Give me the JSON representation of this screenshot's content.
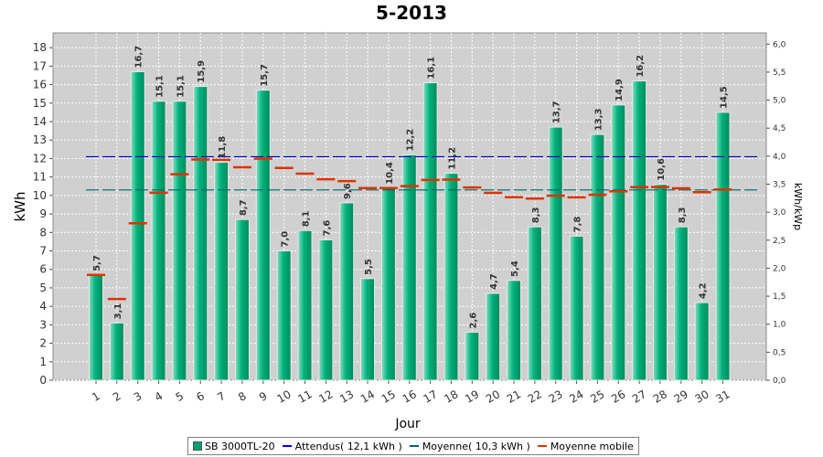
{
  "chart_data": {
    "type": "bar",
    "title": "5-2013",
    "xlabel": "Jour",
    "ylabel": "kWh",
    "y2label": "kWh/kWp",
    "ylim": [
      0,
      18.8
    ],
    "y2lim": [
      0,
      6.2
    ],
    "y_ticks": [
      0,
      1,
      2,
      3,
      4,
      5,
      6,
      7,
      8,
      9,
      10,
      11,
      12,
      13,
      14,
      15,
      16,
      17,
      18
    ],
    "y2_ticks": [
      "0,0",
      "0,5",
      "1,0",
      "1,5",
      "2,0",
      "2,5",
      "3,0",
      "3,5",
      "4,0",
      "4,5",
      "5,0",
      "5,5",
      "6,0"
    ],
    "grid": true,
    "legend_position": "bottom",
    "categories": [
      "1",
      "2",
      "3",
      "4",
      "5",
      "6",
      "7",
      "8",
      "9",
      "10",
      "11",
      "12",
      "13",
      "14",
      "15",
      "16",
      "17",
      "18",
      "19",
      "20",
      "21",
      "22",
      "23",
      "24",
      "25",
      "26",
      "27",
      "28",
      "29",
      "30",
      "31"
    ],
    "series": [
      {
        "name": "SB 3000TL-20",
        "kind": "bar",
        "color": "#00b07a",
        "values": [
          5.7,
          3.1,
          16.7,
          15.1,
          15.1,
          15.9,
          11.8,
          8.7,
          15.7,
          7.0,
          8.1,
          7.6,
          9.6,
          5.5,
          10.4,
          12.2,
          16.1,
          11.2,
          2.6,
          4.7,
          5.4,
          8.3,
          13.7,
          7.8,
          13.3,
          14.9,
          16.2,
          10.6,
          8.3,
          4.2,
          14.5
        ],
        "labels": [
          "5,7",
          "3,1",
          "16,7",
          "15,1",
          "15,1",
          "15,9",
          "11,8",
          "8,7",
          "15,7",
          "7,0",
          "8,1",
          "7,6",
          "9,6",
          "5,5",
          "10,4",
          "12,2",
          "16,1",
          "11,2",
          "2,6",
          "4,7",
          "5,4",
          "8,3",
          "13,7",
          "7,8",
          "13,3",
          "14,9",
          "16,2",
          "10,6",
          "8,3",
          "4,2",
          "14,5"
        ]
      },
      {
        "name": "Attendus( 12,1 kWh )",
        "kind": "hline",
        "color": "#0000cc",
        "value": 12.1
      },
      {
        "name": "Moyenne( 10,3 kWh )",
        "kind": "hline",
        "color": "#006666",
        "value": 10.3
      },
      {
        "name": "Moyenne mobile",
        "kind": "step",
        "color": "#dd3300",
        "values": [
          5.7,
          4.4,
          8.5,
          10.15,
          11.15,
          11.95,
          11.93,
          11.53,
          11.99,
          11.49,
          11.18,
          10.88,
          10.78,
          10.4,
          10.4,
          10.51,
          10.84,
          10.86,
          10.43,
          10.14,
          9.91,
          9.83,
          9.99,
          9.9,
          10.04,
          10.23,
          10.45,
          10.46,
          10.39,
          10.18,
          10.32
        ]
      }
    ]
  },
  "legend_items": [
    "SB 3000TL-20",
    "Attendus( 12,1 kWh )",
    "Moyenne( 10,3 kWh )",
    "Moyenne mobile"
  ]
}
